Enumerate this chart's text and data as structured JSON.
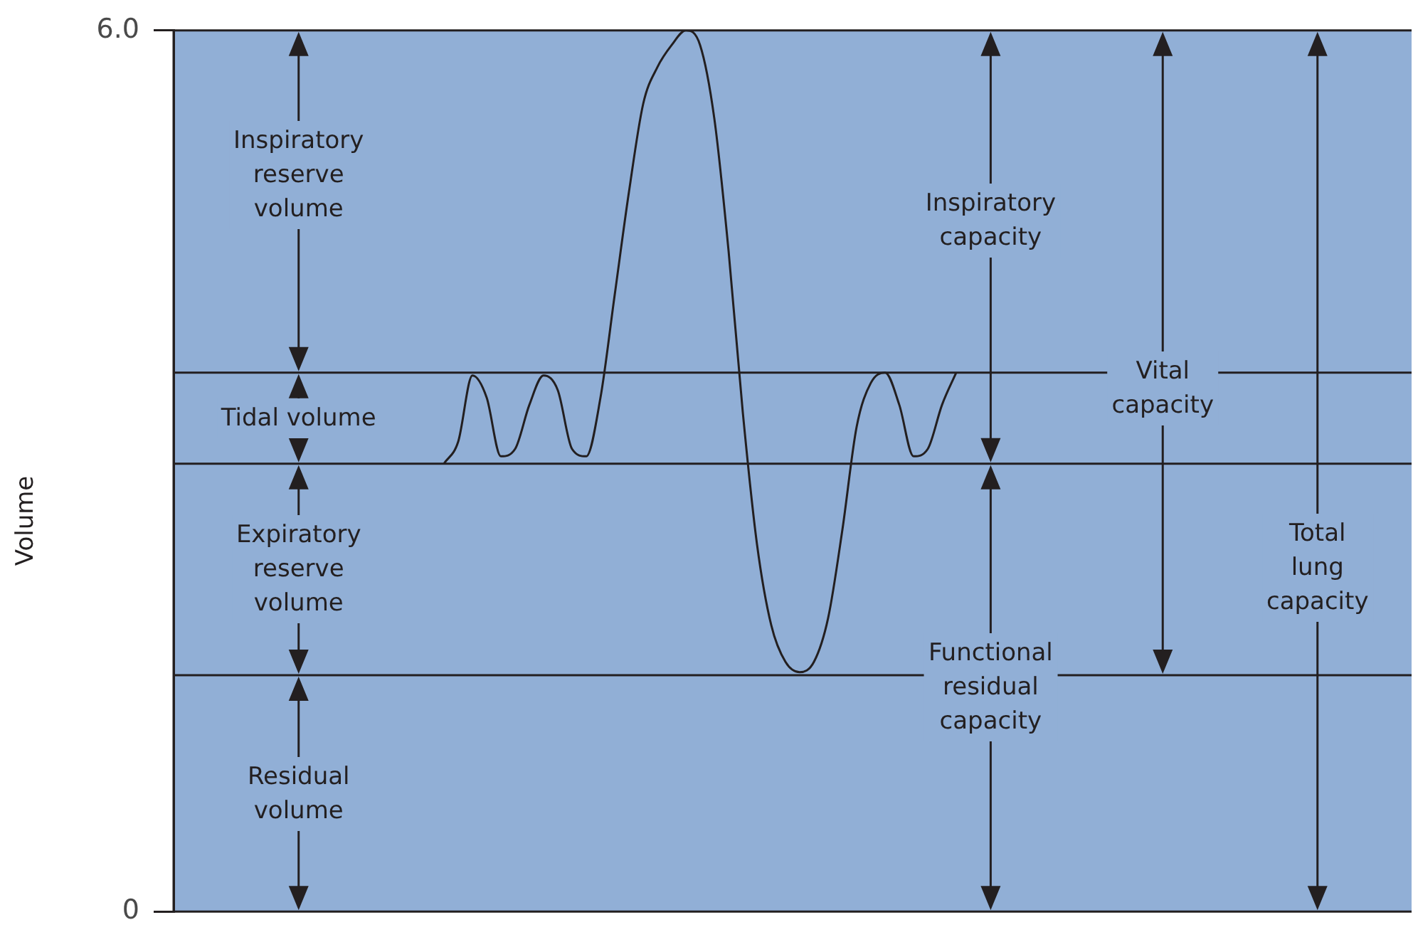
{
  "chart_data": {
    "type": "line",
    "ylabel": "Volume",
    "categories": [
      null,
      null,
      null,
      null,
      null,
      null,
      null,
      null,
      null,
      null,
      null,
      null,
      null,
      null,
      null,
      null,
      null,
      null,
      null,
      null,
      null,
      null,
      null,
      null,
      null,
      null,
      null,
      null,
      null,
      null,
      null,
      null,
      null,
      null,
      null,
      null,
      null,
      null,
      null,
      null,
      null,
      null,
      null,
      null,
      null,
      null,
      null,
      null,
      null,
      null,
      null,
      null,
      null,
      null,
      null,
      null,
      null,
      null,
      null,
      null,
      null,
      null,
      null,
      null,
      null,
      null,
      null,
      null,
      null,
      null,
      null,
      null,
      null,
      null,
      null,
      null,
      null,
      null,
      null,
      null,
      null,
      null,
      null,
      null,
      null,
      null,
      null,
      null
    ],
    "series": [
      {
        "color": "#231f20",
        "values": [
          null,
          null,
          null,
          null,
          null,
          null,
          null,
          null,
          null,
          null,
          null,
          null,
          null,
          null,
          null,
          null,
          null,
          null,
          null,
          3.05,
          3.2,
          3.65,
          3.5,
          3.1,
          3.15,
          3.45,
          3.65,
          3.55,
          3.15,
          3.1,
          3.5,
          4.2,
          4.9,
          5.5,
          5.75,
          5.9,
          6.0,
          5.9,
          5.4,
          4.5,
          3.4,
          2.5,
          1.95,
          1.7,
          1.63,
          1.7,
          2.0,
          2.6,
          3.3,
          3.6,
          3.67,
          3.45,
          3.1,
          3.15,
          3.45,
          3.67,
          null,
          null,
          null,
          null,
          null,
          null,
          null,
          null,
          null,
          null,
          null,
          null,
          null,
          null,
          null,
          null,
          null,
          null,
          null,
          null,
          null,
          null,
          null,
          null,
          null,
          null,
          null,
          null,
          null,
          null,
          null,
          null
        ]
      }
    ],
    "ylim": [
      0,
      6.0
    ],
    "yticks": [
      0,
      {
        "value": 6.0,
        "label": "6.0"
      }
    ],
    "ref_lines": [
      {
        "axis": "y",
        "value": 3.67,
        "label": null
      },
      {
        "axis": "y",
        "value": 3.05,
        "label": null
      },
      {
        "axis": "y",
        "value": 1.61,
        "label": null
      }
    ],
    "annotations": [
      "Inspiratory reserve volume",
      "Tidal volume",
      "Expiratory reserve volume",
      "Residual volume",
      "Inspiratory capacity",
      "Functional residual capacity",
      "Vital capacity",
      "Total lung capacity"
    ],
    "grid": false,
    "legend": false,
    "tick_labels": "y",
    "marker": "none",
    "line_style": "solid"
  }
}
